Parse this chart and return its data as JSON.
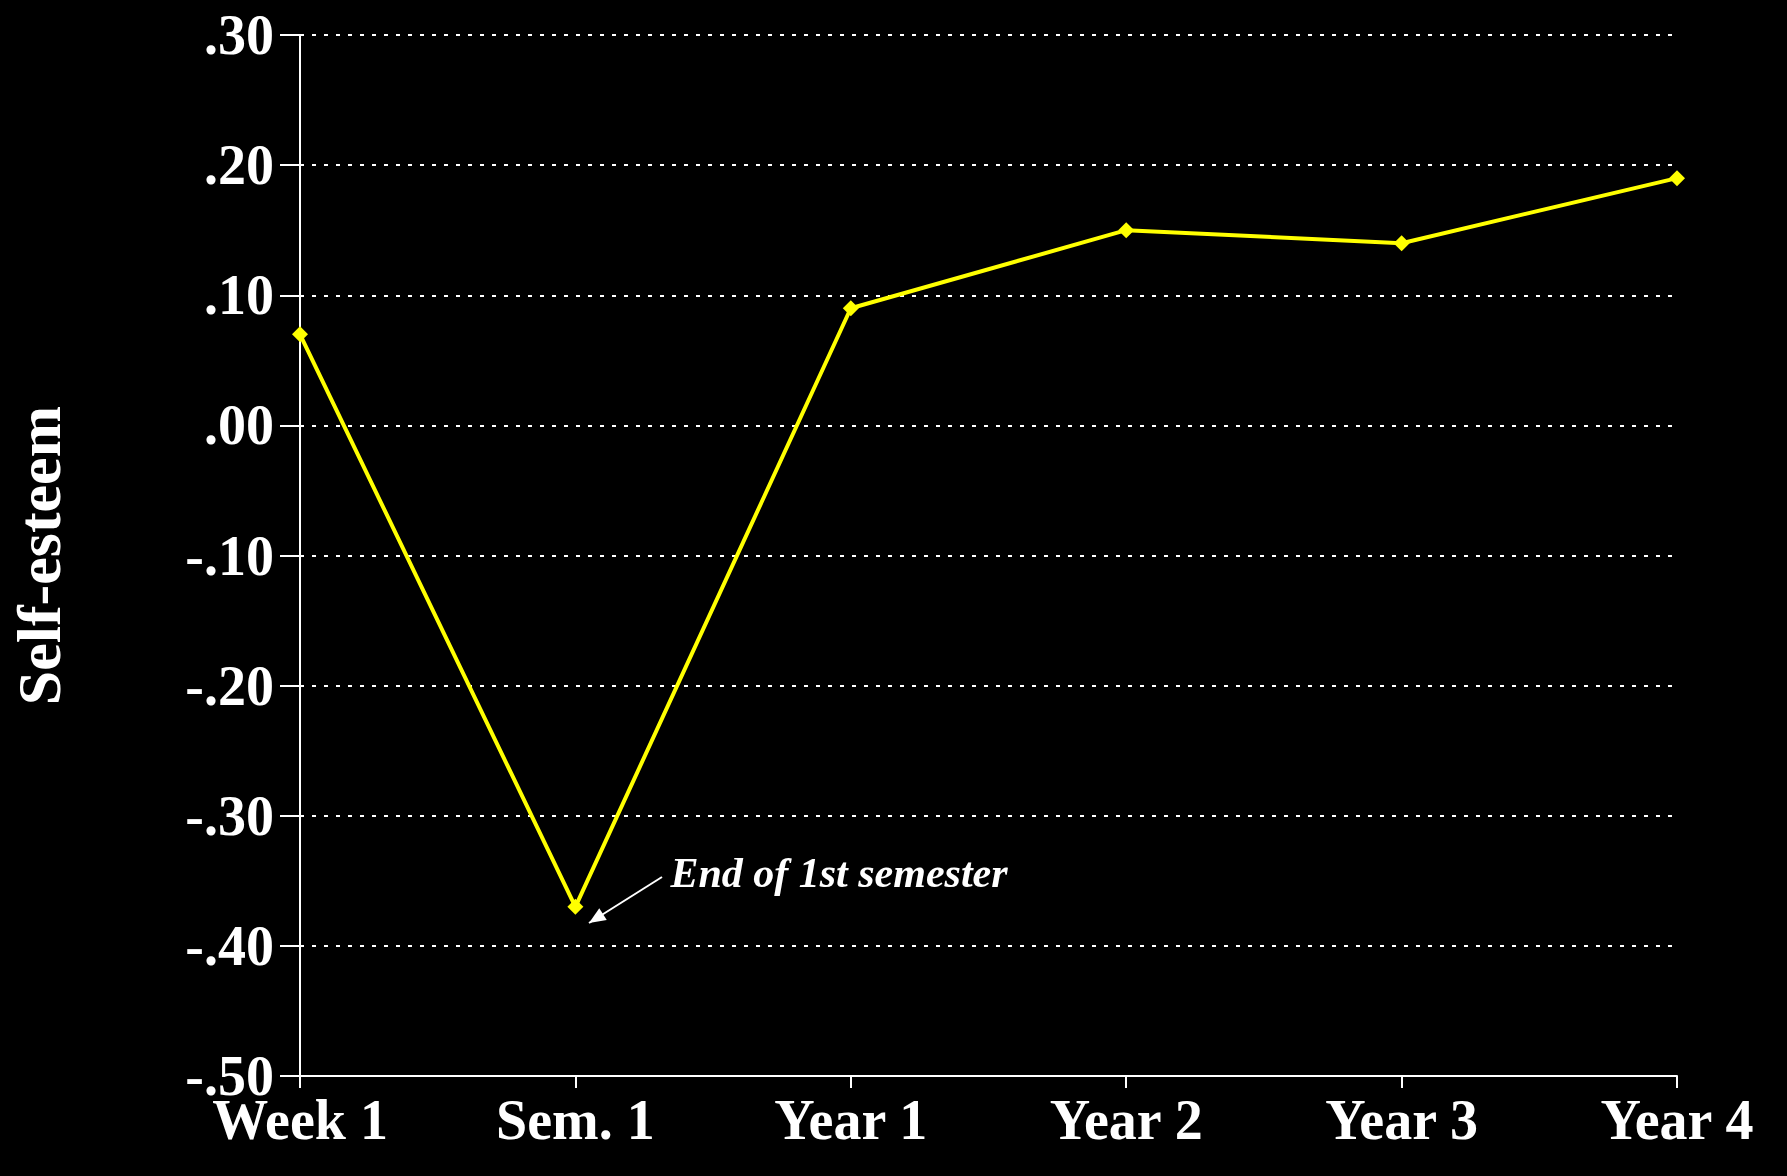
{
  "chart_data": {
    "type": "line",
    "ylabel": "Self-esteem",
    "categories": [
      "Week 1",
      "Sem. 1",
      "Year 1",
      "Year 2",
      "Year 3",
      "Year 4"
    ],
    "series": [
      {
        "color": "#ffff00",
        "values": [
          0.07,
          -0.37,
          0.09,
          0.15,
          0.14,
          0.19
        ]
      }
    ],
    "ylim": [
      -0.5,
      0.3
    ],
    "yticks": [
      {
        "value": -0.5,
        "label": "-.50"
      },
      {
        "value": -0.4,
        "label": "-.40"
      },
      {
        "value": -0.3,
        "label": "-.30"
      },
      {
        "value": -0.2,
        "label": "-.20"
      },
      {
        "value": -0.1,
        "label": "-.10"
      },
      {
        "value": 0,
        "label": ".00"
      },
      {
        "value": 0.1,
        "label": ".10"
      },
      {
        "value": 0.2,
        "label": ".20"
      },
      {
        "value": 0.3,
        "label": ".30"
      }
    ],
    "grid": "y",
    "marker": "diamond",
    "line_style": "solid",
    "annotations": [
      {
        "text": "End of 1st semester",
        "x": "Sem. 1",
        "y": -0.37
      }
    ]
  }
}
